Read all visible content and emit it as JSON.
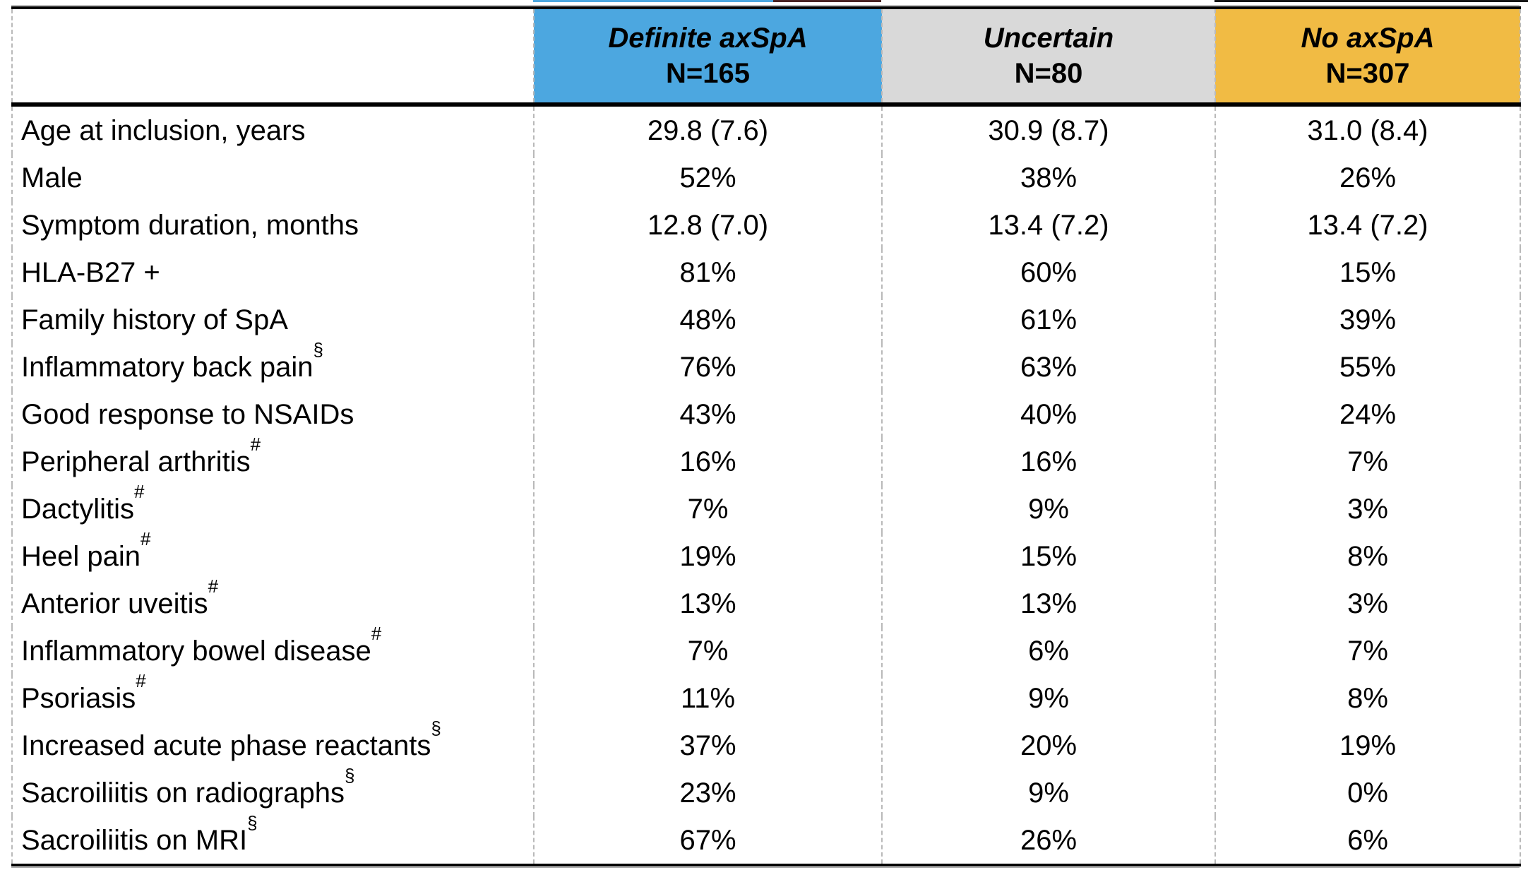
{
  "table": {
    "columns": [
      {
        "label": "Definite axSpA",
        "n": "N=165",
        "color": "#4ca7e0"
      },
      {
        "label": "Uncertain",
        "n": "N=80",
        "color": "#d9d9d9"
      },
      {
        "label": "No axSpA",
        "n": "N=307",
        "color": "#f1bb44"
      }
    ],
    "rows": [
      {
        "label": "Age at inclusion, years",
        "sup": "",
        "values": [
          "29.8 (7.6)",
          "30.9 (8.7)",
          "31.0 (8.4)"
        ]
      },
      {
        "label": "Male",
        "sup": "",
        "values": [
          "52%",
          "38%",
          "26%"
        ]
      },
      {
        "label": "Symptom duration, months",
        "sup": "",
        "values": [
          "12.8 (7.0)",
          "13.4 (7.2)",
          "13.4 (7.2)"
        ]
      },
      {
        "label": "HLA-B27 +",
        "sup": "",
        "values": [
          "81%",
          "60%",
          "15%"
        ]
      },
      {
        "label": "Family history of SpA",
        "sup": "",
        "values": [
          "48%",
          "61%",
          "39%"
        ]
      },
      {
        "label": "Inflammatory back pain",
        "sup": "§",
        "values": [
          "76%",
          "63%",
          "55%"
        ]
      },
      {
        "label": "Good response to NSAIDs",
        "sup": "",
        "values": [
          "43%",
          "40%",
          "24%"
        ]
      },
      {
        "label": "Peripheral arthritis",
        "sup": "#",
        "values": [
          "16%",
          "16%",
          "7%"
        ]
      },
      {
        "label": "Dactylitis",
        "sup": "#",
        "values": [
          "7%",
          "9%",
          "3%"
        ]
      },
      {
        "label": "Heel pain",
        "sup": "#",
        "values": [
          "19%",
          "15%",
          "8%"
        ]
      },
      {
        "label": "Anterior uveitis",
        "sup": "#",
        "values": [
          "13%",
          "13%",
          "3%"
        ]
      },
      {
        "label": "Inflammatory bowel disease",
        "sup": "#",
        "values": [
          "7%",
          "6%",
          "7%"
        ]
      },
      {
        "label": "Psoriasis",
        "sup": "#",
        "values": [
          "11%",
          "9%",
          "8%"
        ]
      },
      {
        "label": "Increased acute phase reactants",
        "sup": "§",
        "values": [
          "37%",
          "20%",
          "19%"
        ]
      },
      {
        "label": "Sacroiliitis on radiographs",
        "sup": "§",
        "values": [
          "23%",
          "9%",
          "0%"
        ]
      },
      {
        "label": "Sacroiliitis on MRI",
        "sup": "§",
        "values": [
          "67%",
          "26%",
          "6%"
        ]
      }
    ]
  }
}
